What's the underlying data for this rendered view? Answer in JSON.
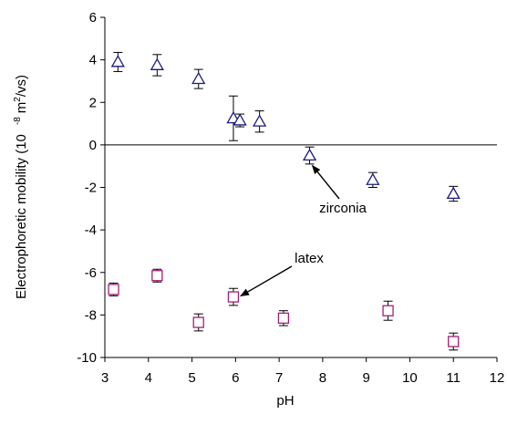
{
  "chart_data": {
    "type": "scatter",
    "title": "",
    "xlabel": "pH",
    "ylabel": "Electrophoretic mobility  (10",
    "ylabel_exponent": "-8",
    "ylabel_unit_prefix": "m",
    "ylabel_unit_power": "2",
    "ylabel_unit_suffix": "/vs)",
    "xlim": [
      3,
      12
    ],
    "ylim": [
      -10,
      6
    ],
    "x_ticks": [
      3,
      4,
      5,
      6,
      7,
      8,
      9,
      10,
      11,
      12
    ],
    "y_ticks": [
      6,
      4,
      2,
      0,
      -2,
      -4,
      -6,
      -8,
      -10
    ],
    "zero_line": true,
    "grid": false,
    "series": [
      {
        "name": "zirconia",
        "marker": "triangle",
        "color": "#1a1a80",
        "points": [
          {
            "x": 3.3,
            "y": 3.9,
            "err": 0.45
          },
          {
            "x": 4.2,
            "y": 3.75,
            "err": 0.5
          },
          {
            "x": 5.15,
            "y": 3.1,
            "err": 0.45
          },
          {
            "x": 5.95,
            "y": 1.25,
            "err": 1.05
          },
          {
            "x": 6.1,
            "y": 1.15,
            "err": 0.3
          },
          {
            "x": 6.55,
            "y": 1.1,
            "err": 0.5
          },
          {
            "x": 7.7,
            "y": -0.5,
            "err": 0.4
          },
          {
            "x": 9.15,
            "y": -1.65,
            "err": 0.35
          },
          {
            "x": 11.0,
            "y": -2.3,
            "err": 0.35
          }
        ]
      },
      {
        "name": "latex",
        "marker": "square",
        "color": "#a0207a",
        "points": [
          {
            "x": 3.2,
            "y": -6.8,
            "err": 0.3
          },
          {
            "x": 4.2,
            "y": -6.15,
            "err": 0.3
          },
          {
            "x": 5.15,
            "y": -8.35,
            "err": 0.4
          },
          {
            "x": 5.95,
            "y": -7.15,
            "err": 0.4
          },
          {
            "x": 7.1,
            "y": -8.15,
            "err": 0.35
          },
          {
            "x": 9.5,
            "y": -7.8,
            "err": 0.45
          },
          {
            "x": 11.0,
            "y": -9.25,
            "err": 0.4
          }
        ]
      }
    ],
    "annotations": [
      {
        "text": "zirconia",
        "target_series": "zirconia",
        "target_index": 6
      },
      {
        "text": "latex",
        "target_series": "latex",
        "target_index": 3
      }
    ]
  }
}
